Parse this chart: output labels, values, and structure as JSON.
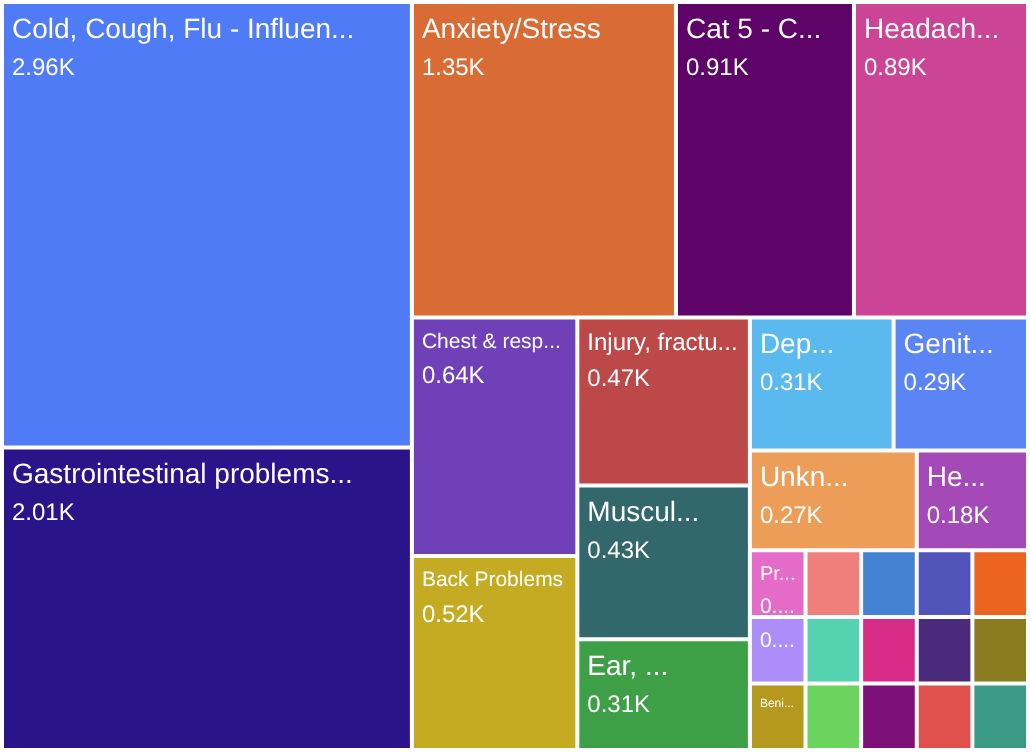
{
  "chart_data": {
    "type": "other",
    "categories": [
      "Cold, Cough, Flu - Influen...",
      "Gastrointestinal problems...",
      "Anxiety/Stress",
      "Cat 5 - C...",
      "Headach...",
      "Chest & resp...",
      "Back Problems",
      "Injury, fractu...",
      "Muscul...",
      "Ear, ...",
      "Dep...",
      "Genit...",
      "Unkn...",
      "He...",
      "Pr...",
      null,
      "Beni...",
      null,
      null,
      null,
      null,
      null,
      null,
      null,
      null,
      null,
      null,
      null,
      null
    ],
    "values": [
      2.96,
      2.01,
      1.35,
      0.91,
      0.89,
      0.64,
      0.52,
      0.47,
      0.43,
      0.31,
      0.31,
      0.29,
      0.27,
      0.18,
      null,
      null,
      null,
      null,
      null,
      null,
      null,
      null,
      null,
      null,
      null,
      null,
      null,
      null,
      null
    ],
    "value_labels": [
      "2.96K",
      "2.01K",
      "1.35K",
      "0.91K",
      "0.89K",
      "0.64K",
      "0.52K",
      "0.47K",
      "0.43K",
      "0.31K",
      "0.31K",
      "0.29K",
      "0.27K",
      "0.18K",
      "0....",
      "0....",
      null,
      null,
      null,
      null,
      null,
      null,
      null,
      null,
      null,
      null,
      null,
      null,
      null
    ],
    "colors": [
      "#4f7cf6",
      "#2a1489",
      "#d96b34",
      "#5e0368",
      "#cc4496",
      "#6f40b8",
      "#c5ab22",
      "#bd4848",
      "#32676c",
      "#3ea046",
      "#5ab9ee",
      "#5b84f5",
      "#ec9d58",
      "#a44ab8",
      "#e56bc8",
      "#ad8ef8",
      "#b4991e",
      "#f07f7c",
      "#55d3b0",
      "#6ad45e",
      "#4381d3",
      "#5154b9",
      "#eb6420",
      "#d82b87",
      "#7b1079",
      "#4a2b7b",
      "#8a7a20",
      "#e0504d",
      "#3a9a85"
    ]
  }
}
